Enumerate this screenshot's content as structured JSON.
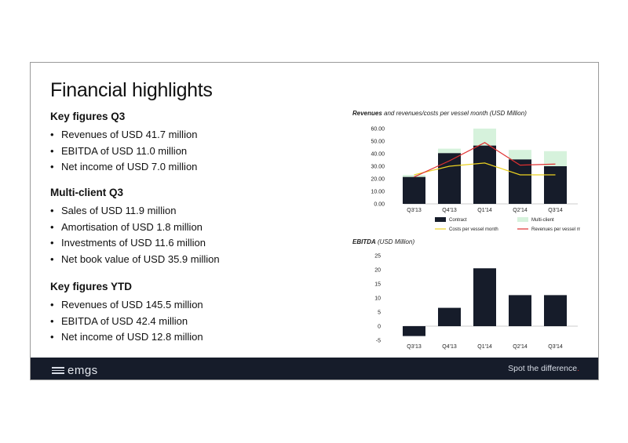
{
  "slide": {
    "title": "Financial highlights",
    "sections": [
      {
        "heading": "Key figures Q3",
        "items": [
          "Revenues of USD 41.7 million",
          "EBITDA of USD 11.0 million",
          "Net income of USD 7.0 million"
        ]
      },
      {
        "heading": "Multi-client Q3",
        "items": [
          "Sales of USD 11.9 million",
          "Amortisation of USD 1.8 million",
          "Investments of USD 11.6 million",
          "Net book value of USD 35.9 million"
        ]
      },
      {
        "heading": "Key figures YTD",
        "items": [
          "Revenues of USD 145.5 million",
          "EBITDA of USD 42.4 million",
          "Net income of USD 12.8 million"
        ]
      }
    ]
  },
  "footer": {
    "logo_text": "emgs",
    "tagline": "Spot the difference",
    "tagline_dot": "."
  },
  "chart_data": [
    {
      "type": "bar",
      "title_bold": "Revenues",
      "title_rest": " and revenues/costs per vessel month (USD Million)",
      "categories": [
        "Q3'13",
        "Q4'13",
        "Q1'14",
        "Q2'14",
        "Q3'14"
      ],
      "stacked": true,
      "ylim": [
        0,
        60
      ],
      "yticks": [
        "0.00",
        "10.00",
        "20.00",
        "30.00",
        "40.00",
        "50.00",
        "60.00"
      ],
      "y2lim": [
        0,
        7
      ],
      "y2ticks": [
        "0.0",
        "1.0",
        "2.0",
        "3.0",
        "4.0",
        "5.0",
        "6.0",
        "7.0"
      ],
      "series": [
        {
          "name": "Contract",
          "kind": "bar",
          "axis": "left",
          "color": "#161c2a",
          "values": [
            21.5,
            40.5,
            46.5,
            35.5,
            30
          ]
        },
        {
          "name": "Multi-client",
          "kind": "bar",
          "axis": "left",
          "color": "#d6f2dc",
          "values": [
            1.5,
            3.5,
            13.5,
            7.5,
            12
          ]
        },
        {
          "name": "Costs per vessel month",
          "kind": "line",
          "axis": "right",
          "color": "#ecd221",
          "values": [
            2.7,
            3.5,
            3.8,
            2.7,
            2.7
          ]
        },
        {
          "name": "Revenues per vessel month",
          "kind": "line",
          "axis": "right",
          "color": "#e03030",
          "values": [
            2.5,
            4.0,
            5.7,
            3.6,
            3.7
          ]
        }
      ],
      "legend": "bottom"
    },
    {
      "type": "bar",
      "title_bold": "EBITDA",
      "title_rest": " (USD Million)",
      "categories": [
        "Q3'13",
        "Q4'13",
        "Q1'14",
        "Q2'14",
        "Q3'14"
      ],
      "ylim": [
        -5,
        25
      ],
      "yticks": [
        "-5",
        "0",
        "5",
        "10",
        "15",
        "20",
        "25"
      ],
      "series": [
        {
          "name": "EBITDA",
          "kind": "bar",
          "color": "#161c2a",
          "values": [
            -3.5,
            6.5,
            20.5,
            11,
            11
          ]
        }
      ]
    }
  ]
}
